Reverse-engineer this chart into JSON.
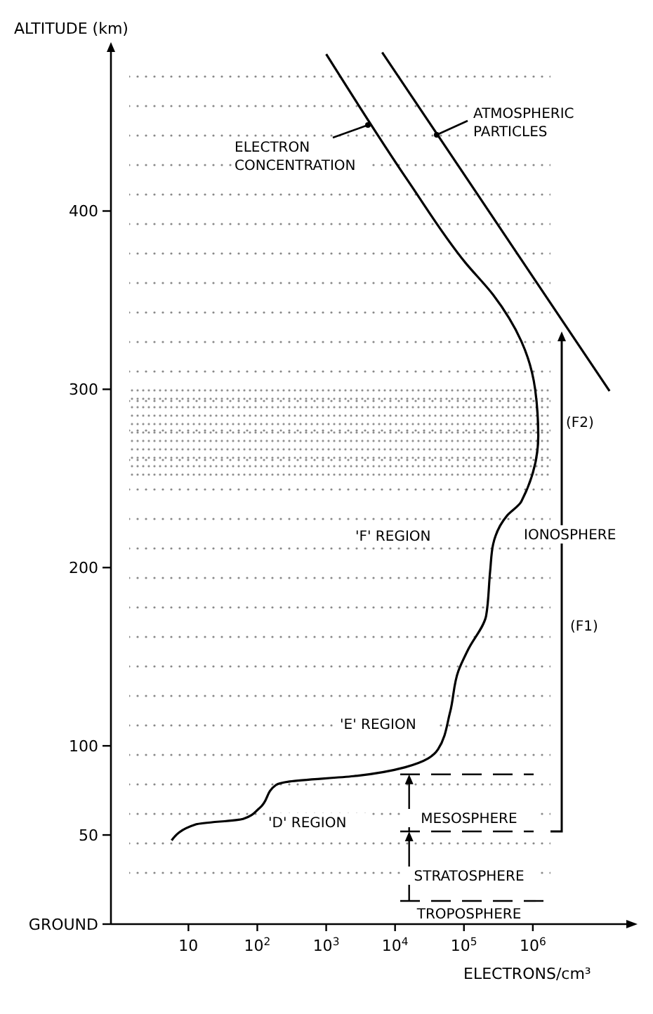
{
  "chart_data": {
    "type": "line",
    "xlabel": "ELECTRONS/cm³",
    "ylabel": "ALTITUDE (km)",
    "log": "x",
    "marker": "none",
    "line_style": "solid",
    "xlim": [
      0.75,
      25000000
    ],
    "xticks": [
      10,
      {
        "value": 100,
        "label": "10$^{2}$"
      },
      {
        "value": 1000,
        "label": "10$^{3}$"
      },
      {
        "value": 10000,
        "label": "10$^{4}$"
      },
      {
        "value": 100000,
        "label": "10$^{5}$"
      },
      {
        "value": 1000000,
        "label": "10$^{6}$"
      }
    ],
    "ylim": [
      0,
      490
    ],
    "yticks": [
      {
        "value": 0,
        "label": "GROUND"
      },
      50,
      100,
      200,
      300,
      400
    ],
    "series": [
      {
        "name": "ELECTRON CONCENTRATION",
        "color": "#000000",
        "x": [
          5.7,
          13,
          62,
          107,
          186,
          295,
          2500,
          14000,
          42000,
          63000,
          83000,
          115000,
          210000,
          240000,
          265000,
          420000,
          680000,
          1200000,
          1080000,
          680000,
          265000,
          105000,
          16000,
          1000
        ],
        "values": [
          47,
          56,
          59,
          65,
          78,
          80,
          83,
          88,
          98,
          119,
          142,
          154,
          173,
          198,
          213,
          229,
          237,
          274,
          300,
          327,
          353,
          371,
          416,
          488
        ]
      },
      {
        "name": "ATMOSPHERIC PARTICLES",
        "color": "#000000",
        "x": [
          6500,
          13000000
        ],
        "values": [
          489,
          299
        ]
      }
    ],
    "bands": [
      {
        "axis": "y",
        "from": 28,
        "to": 477,
        "color": "#888888"
      },
      {
        "axis": "y",
        "from": 250,
        "to": 301,
        "color": "#888888"
      }
    ],
    "ref_lines": [
      {
        "axis": "y",
        "value": 84,
        "line_style": "dashed"
      },
      {
        "axis": "y",
        "value": 52,
        "line_style": "dashed"
      },
      {
        "axis": "y",
        "value": 13,
        "line_style": "dashed"
      }
    ],
    "annotations": [
      "'F' REGION",
      "(F2)",
      "(F1)",
      "'E' REGION",
      "'D' REGION",
      "IONOSPHERE",
      {
        "text": "MESOSPHERE",
        "x": 16000,
        "y": 84
      },
      {
        "text": "STRATOSPHERE",
        "x": 16000,
        "y": 52
      },
      "TROPOSPHERE"
    ]
  }
}
